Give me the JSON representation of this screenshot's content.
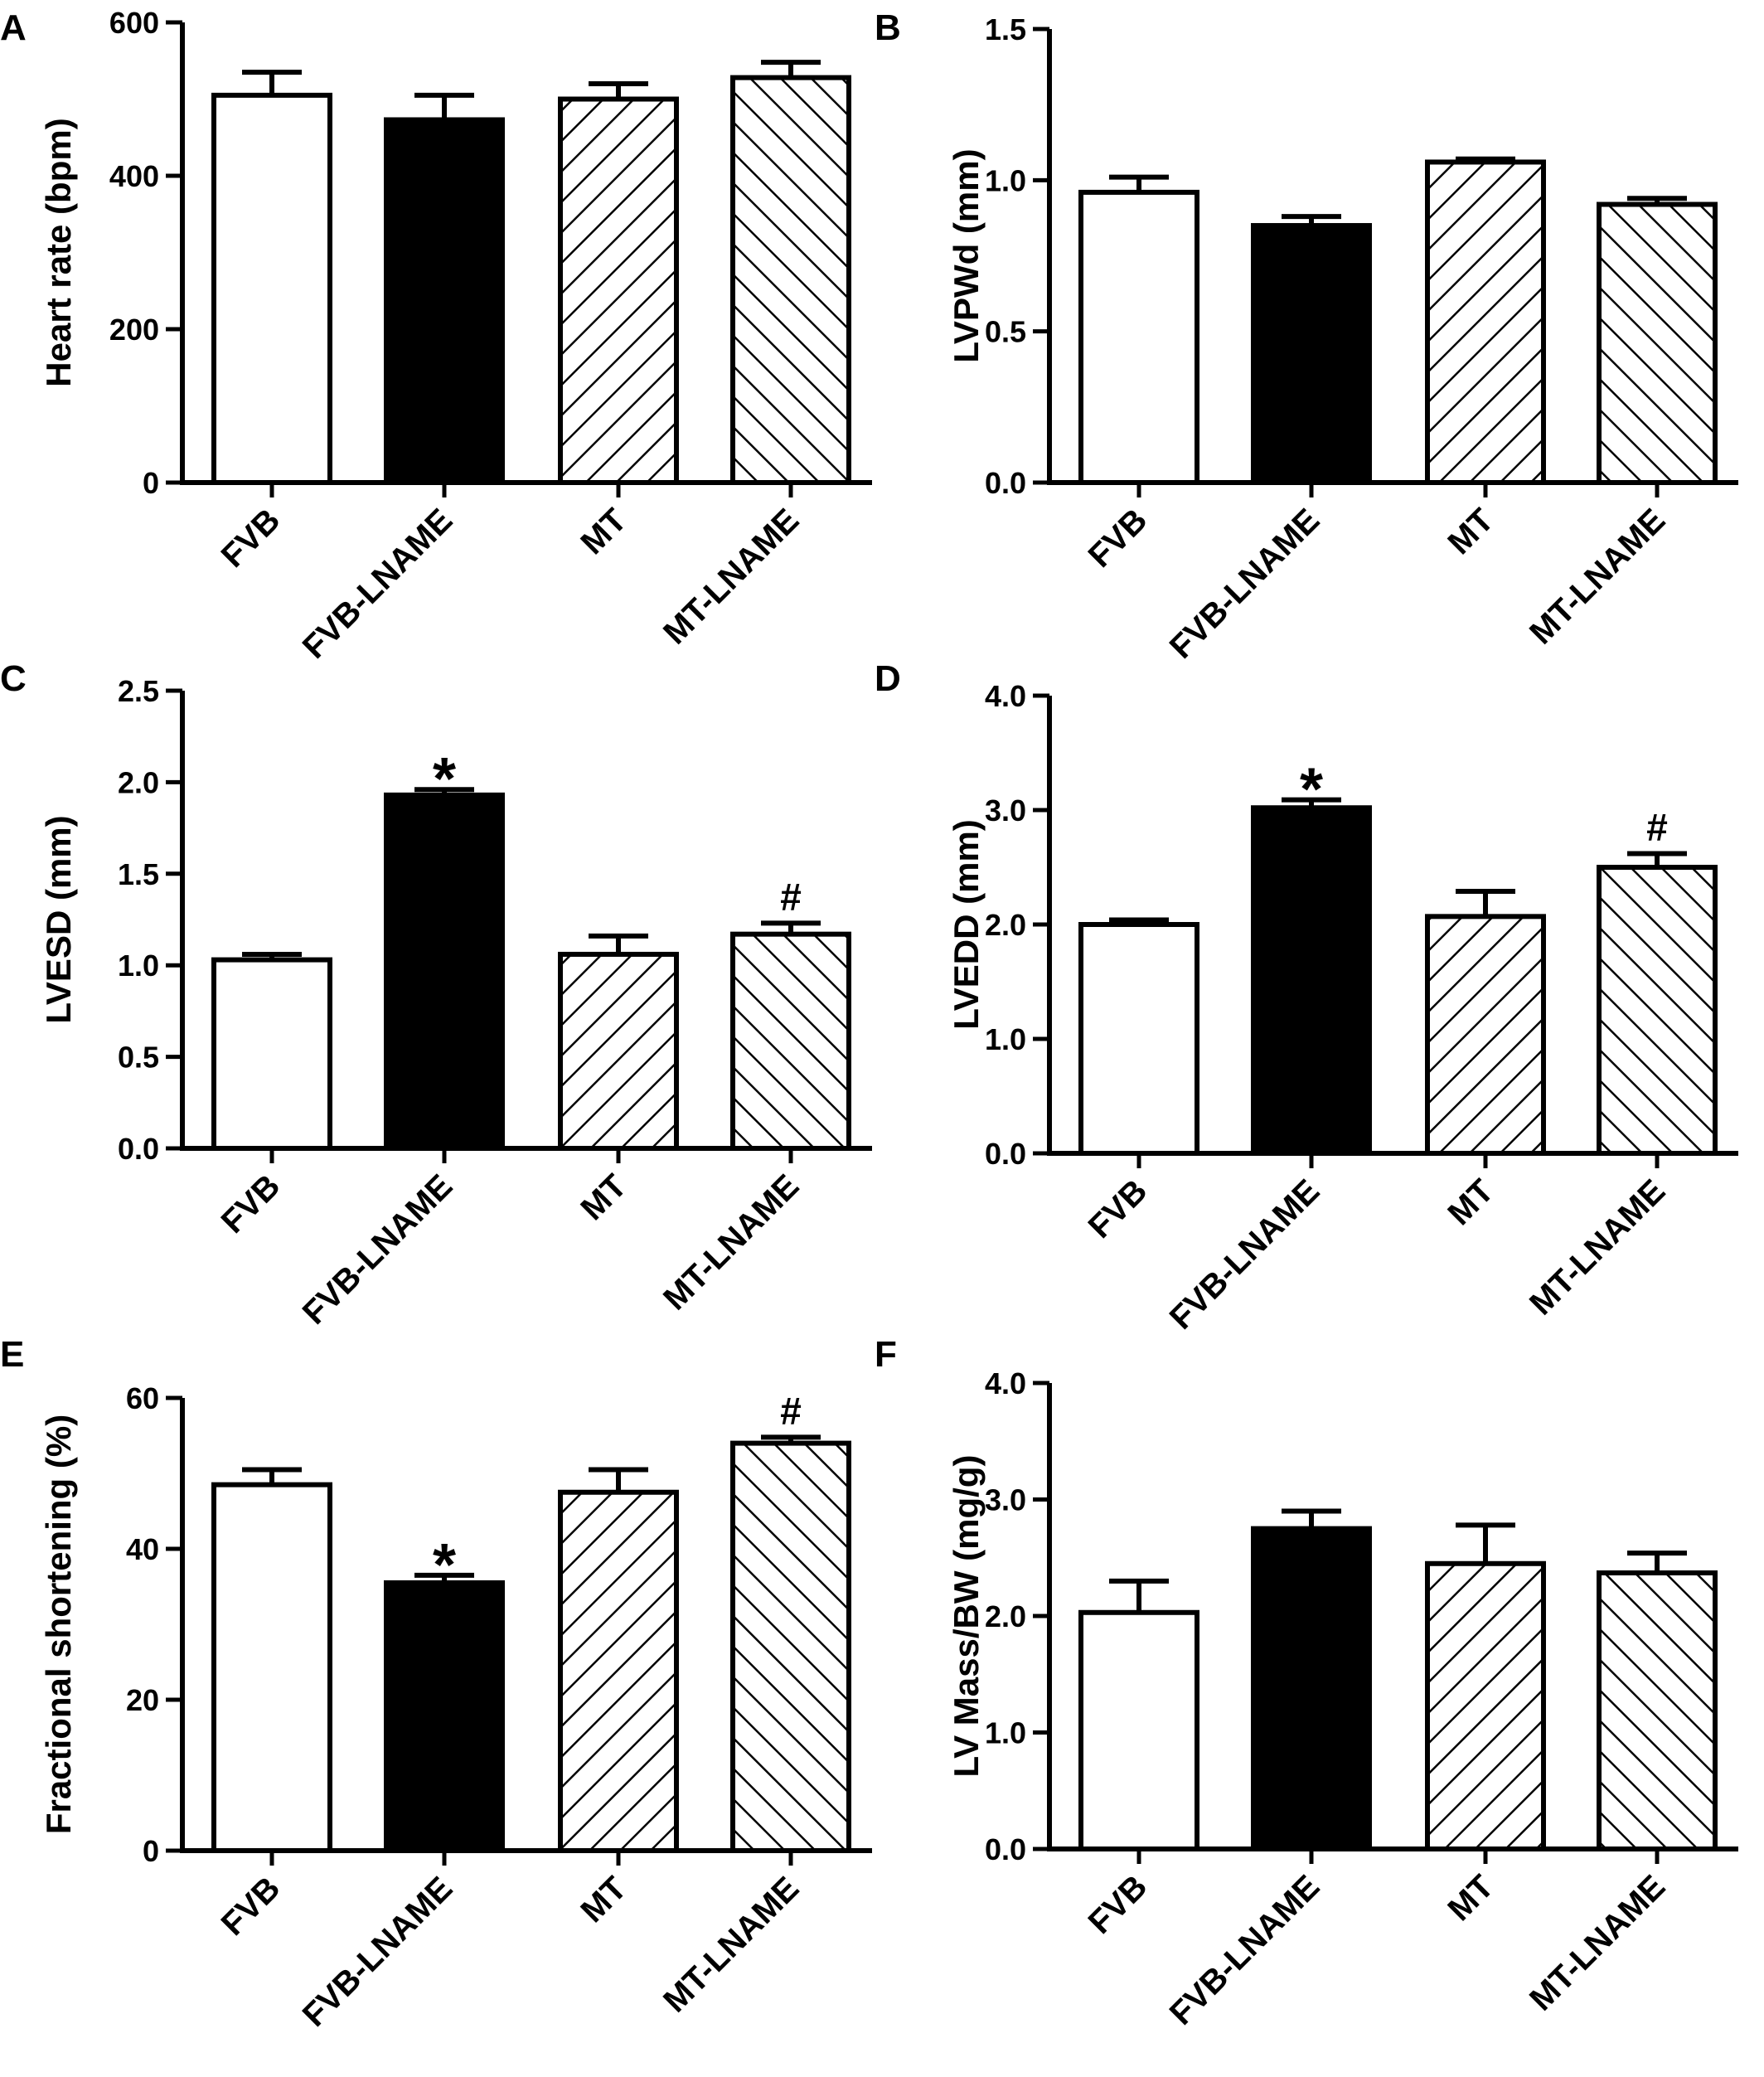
{
  "chart_data": [
    {
      "panel": "A",
      "type": "bar",
      "categories": [
        "FVB",
        "FVB-LNAME",
        "MT",
        "MT-LNAME"
      ],
      "values": [
        505,
        473,
        500,
        528
      ],
      "errors": [
        30,
        32,
        20,
        20
      ],
      "annotations": [
        "",
        "",
        "",
        ""
      ],
      "ylabel": "Heart rate (bpm)",
      "ylim": [
        0,
        600
      ],
      "yticks": [
        0,
        200,
        400,
        600
      ],
      "ytick_labels": [
        "0",
        "200",
        "400",
        "600"
      ]
    },
    {
      "panel": "B",
      "type": "bar",
      "categories": [
        "FVB",
        "FVB-LNAME",
        "MT",
        "MT-LNAME"
      ],
      "values": [
        0.96,
        0.85,
        1.06,
        0.92
      ],
      "errors": [
        0.05,
        0.03,
        0.01,
        0.02
      ],
      "annotations": [
        "",
        "",
        "",
        ""
      ],
      "ylabel": "LVPWd (mm)",
      "ylim": [
        0,
        1.5
      ],
      "yticks": [
        0,
        0.5,
        1.0,
        1.5
      ],
      "ytick_labels": [
        "0.0",
        "0.5",
        "1.0",
        "1.5"
      ]
    },
    {
      "panel": "C",
      "type": "bar",
      "categories": [
        "FVB",
        "FVB-LNAME",
        "MT",
        "MT-LNAME"
      ],
      "values": [
        1.03,
        1.93,
        1.06,
        1.17
      ],
      "errors": [
        0.03,
        0.03,
        0.1,
        0.06
      ],
      "annotations": [
        "",
        "*",
        "",
        "#"
      ],
      "ylabel": "LVESD (mm)",
      "ylim": [
        0,
        2.5
      ],
      "yticks": [
        0,
        0.5,
        1.0,
        1.5,
        2.0,
        2.5
      ],
      "ytick_labels": [
        "0.0",
        "0.5",
        "1.0",
        "1.5",
        "2.0",
        "2.5"
      ]
    },
    {
      "panel": "D",
      "type": "bar",
      "categories": [
        "FVB",
        "FVB-LNAME",
        "MT",
        "MT-LNAME"
      ],
      "values": [
        2.0,
        3.02,
        2.07,
        2.5
      ],
      "errors": [
        0.04,
        0.07,
        0.22,
        0.12
      ],
      "annotations": [
        "",
        "*",
        "",
        "#"
      ],
      "ylabel": "LVEDD (mm)",
      "ylim": [
        0,
        4.0
      ],
      "yticks": [
        0,
        1.0,
        2.0,
        3.0,
        4.0
      ],
      "ytick_labels": [
        "0.0",
        "1.0",
        "2.0",
        "3.0",
        "4.0"
      ]
    },
    {
      "panel": "E",
      "type": "bar",
      "categories": [
        "FVB",
        "FVB-LNAME",
        "MT",
        "MT-LNAME"
      ],
      "values": [
        48.5,
        35.5,
        47.5,
        54
      ],
      "errors": [
        2,
        1,
        3,
        0.8
      ],
      "annotations": [
        "",
        "*",
        "",
        "#"
      ],
      "ylabel": "Fractional shortening (%)",
      "ylim": [
        0,
        60
      ],
      "yticks": [
        0,
        20,
        40,
        60
      ],
      "ytick_labels": [
        "0",
        "20",
        "40",
        "60"
      ]
    },
    {
      "panel": "F",
      "type": "bar",
      "categories": [
        "FVB",
        "FVB-LNAME",
        "MT",
        "MT-LNAME"
      ],
      "values": [
        2.03,
        2.75,
        2.45,
        2.37
      ],
      "errors": [
        0.27,
        0.15,
        0.33,
        0.17
      ],
      "annotations": [
        "",
        "",
        "",
        ""
      ],
      "ylabel": "LV Mass/BW (mg/g)",
      "ylim": [
        0,
        4.0
      ],
      "yticks": [
        0,
        1.0,
        2.0,
        3.0,
        4.0
      ],
      "ytick_labels": [
        "0.0",
        "1.0",
        "2.0",
        "3.0",
        "4.0"
      ]
    }
  ],
  "bar_styles": [
    "white",
    "black",
    "hatch-forward",
    "hatch-back"
  ],
  "colors": {
    "stroke": "#000000",
    "fill_black": "#000000",
    "fill_white": "#ffffff"
  }
}
